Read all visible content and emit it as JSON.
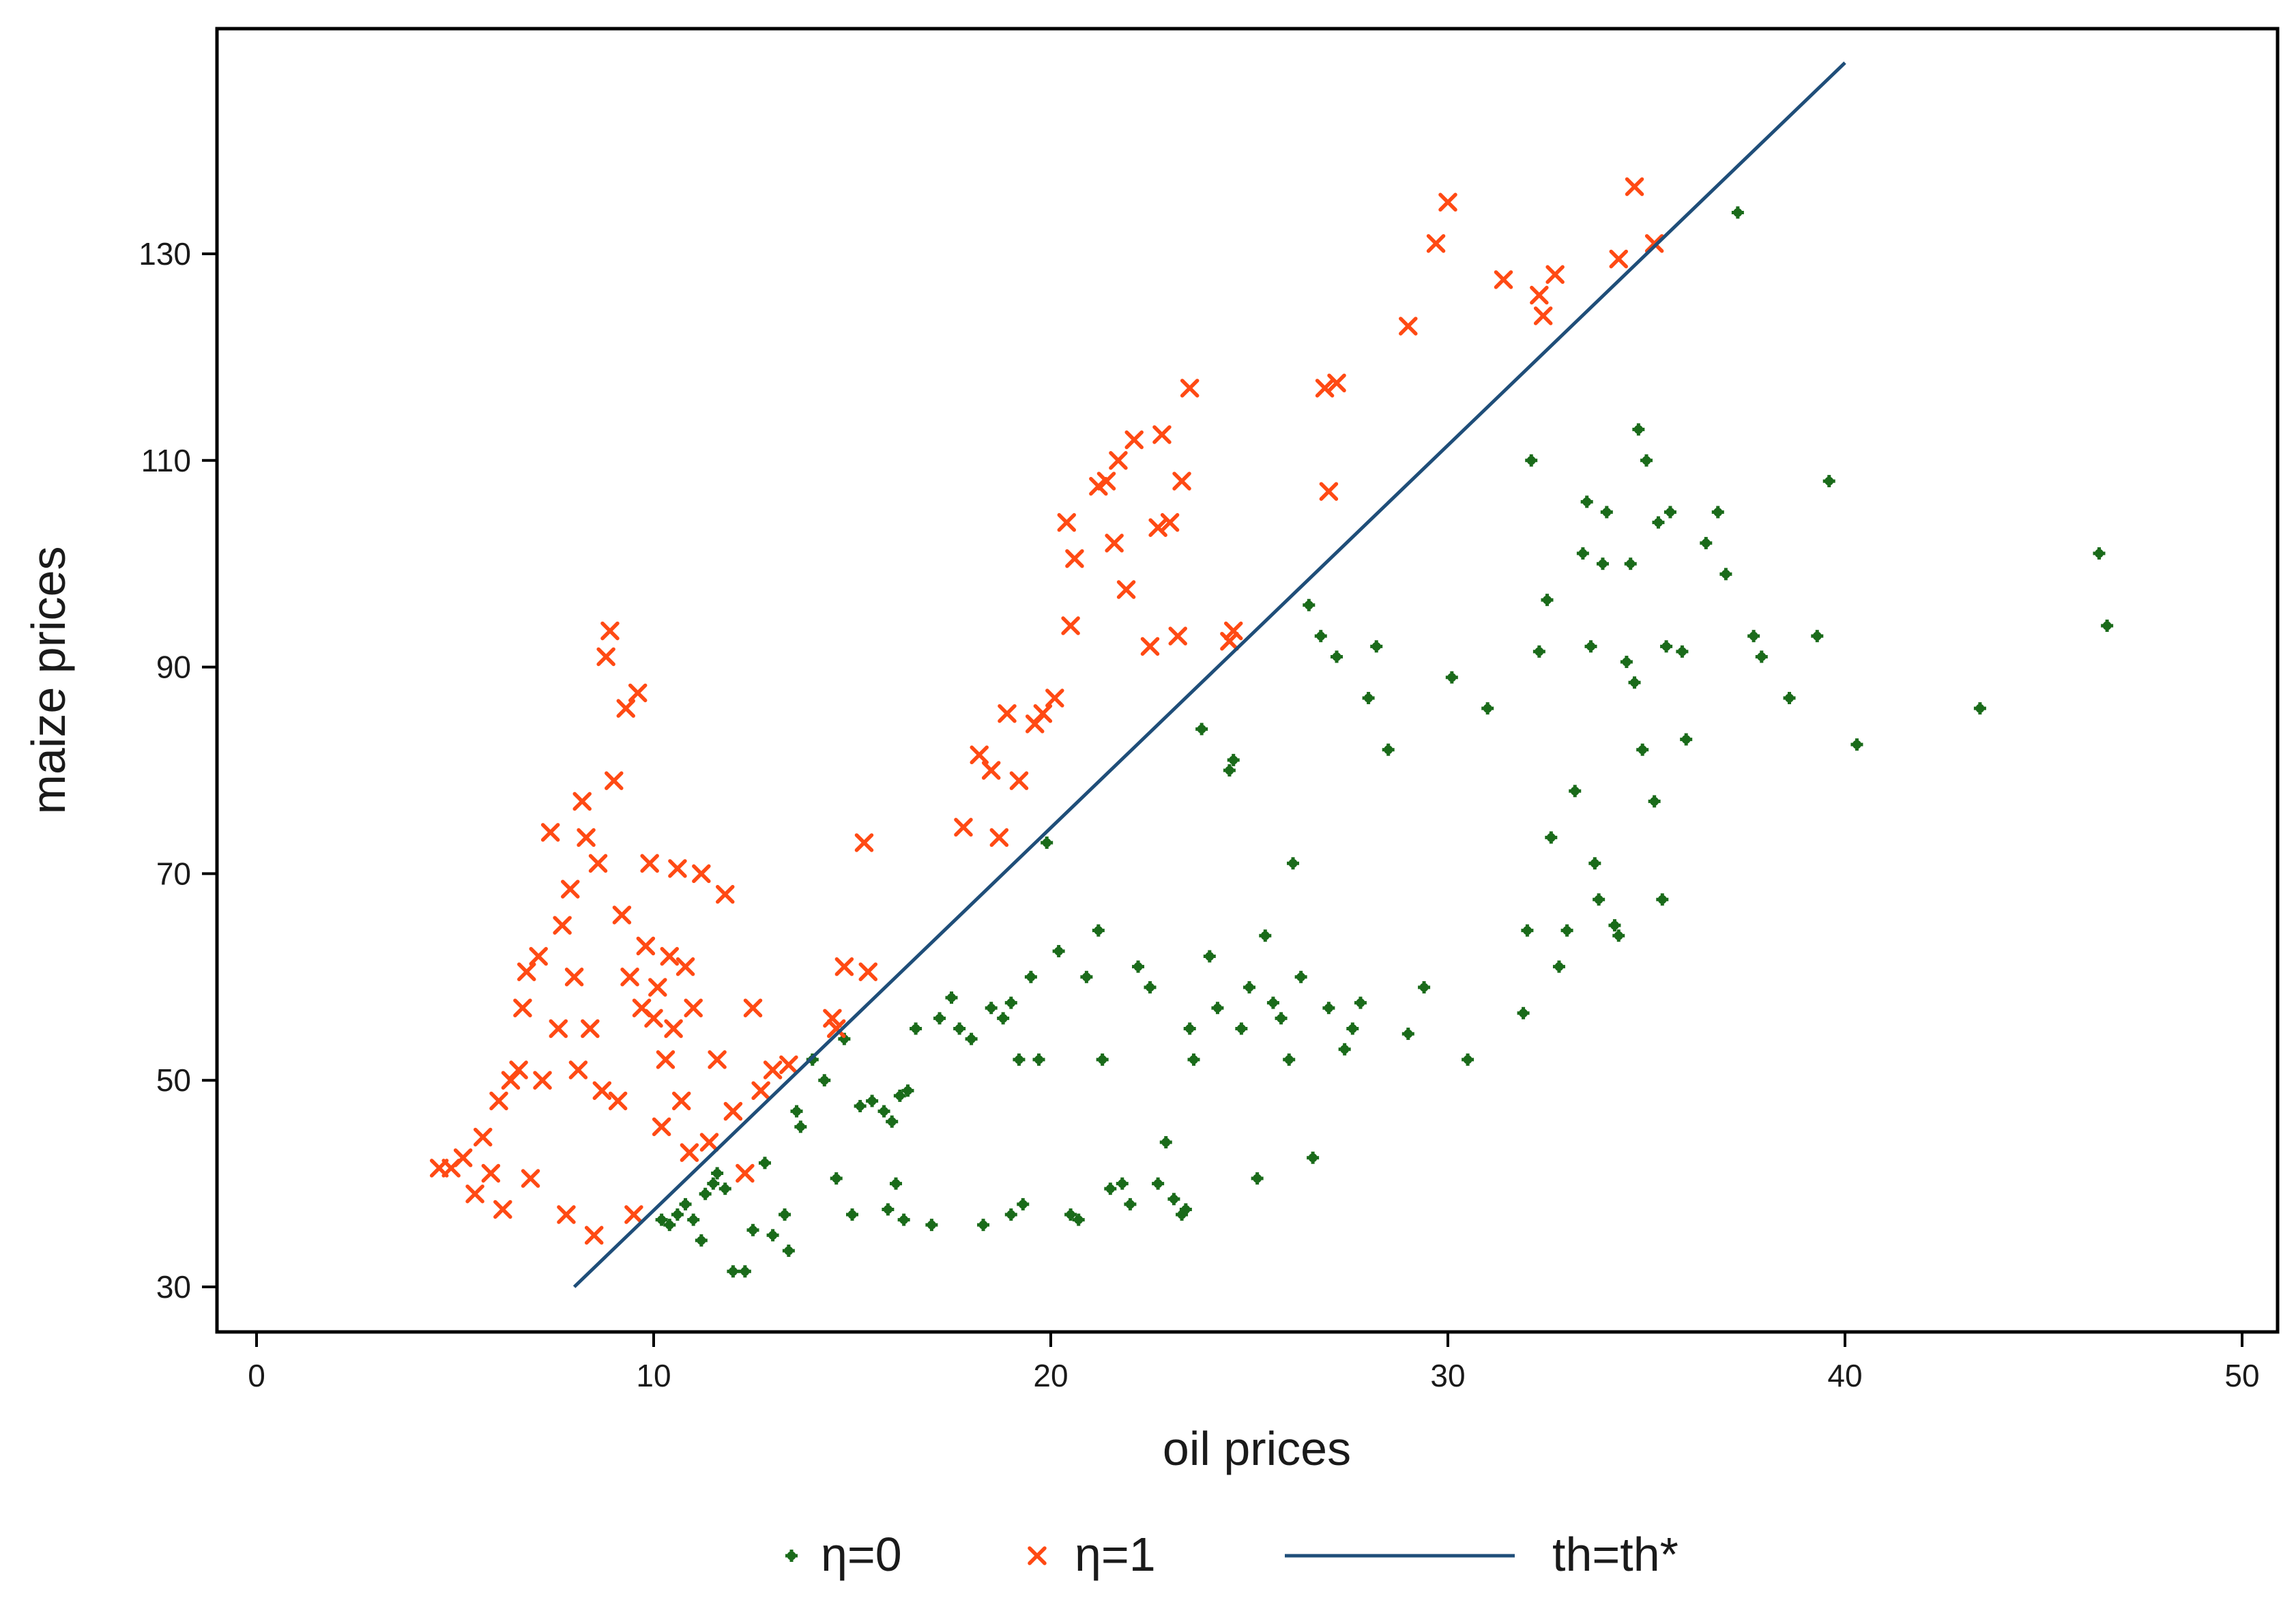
{
  "chart_data": {
    "type": "scatter",
    "title": "",
    "xlabel": "oil prices",
    "ylabel": "maize prices",
    "xlim": [
      -1,
      51
    ],
    "ylim": [
      26,
      149
    ],
    "xticks": [
      0,
      10,
      20,
      30,
      40,
      50
    ],
    "yticks": [
      30,
      50,
      70,
      90,
      110,
      130
    ],
    "grid": false,
    "legend_position": "bottom-center",
    "colors": {
      "eta0": "#1a6b1a",
      "eta1": "#ff4a14",
      "line": "#1f4e79",
      "axis": "#000000"
    },
    "series": [
      {
        "name": "η=0",
        "marker": "dot",
        "points": [
          [
            10.2,
            36.5
          ],
          [
            10.4,
            36
          ],
          [
            10.6,
            37
          ],
          [
            10.8,
            38
          ],
          [
            11.0,
            36.5
          ],
          [
            11.3,
            39
          ],
          [
            11.5,
            40
          ],
          [
            11.6,
            41
          ],
          [
            11.8,
            39.5
          ],
          [
            11.2,
            34.5
          ],
          [
            12.0,
            31.5
          ],
          [
            12.3,
            31.5
          ],
          [
            12.5,
            35.5
          ],
          [
            12.8,
            42
          ],
          [
            13.0,
            35
          ],
          [
            13.3,
            37
          ],
          [
            13.4,
            33.5
          ],
          [
            13.6,
            47
          ],
          [
            13.7,
            45.5
          ],
          [
            14.0,
            52
          ],
          [
            14.3,
            50
          ],
          [
            14.6,
            40.5
          ],
          [
            14.8,
            54
          ],
          [
            15.0,
            37
          ],
          [
            15.2,
            47.5
          ],
          [
            15.5,
            48
          ],
          [
            15.8,
            47
          ],
          [
            16.0,
            46
          ],
          [
            16.2,
            48.5
          ],
          [
            16.4,
            49
          ],
          [
            15.9,
            37.5
          ],
          [
            16.1,
            40
          ],
          [
            16.3,
            36.5
          ],
          [
            16.6,
            55
          ],
          [
            17.0,
            36
          ],
          [
            17.2,
            56
          ],
          [
            17.5,
            58
          ],
          [
            17.7,
            55
          ],
          [
            18.0,
            54
          ],
          [
            18.3,
            36
          ],
          [
            18.5,
            57
          ],
          [
            18.8,
            56
          ],
          [
            19.0,
            57.5
          ],
          [
            19.2,
            52
          ],
          [
            19.0,
            37
          ],
          [
            19.3,
            38
          ],
          [
            19.5,
            60
          ],
          [
            19.7,
            52
          ],
          [
            19.9,
            73
          ],
          [
            20.2,
            62.5
          ],
          [
            20.5,
            37
          ],
          [
            20.7,
            36.5
          ],
          [
            20.9,
            60
          ],
          [
            21.2,
            64.5
          ],
          [
            21.3,
            52
          ],
          [
            21.5,
            39.5
          ],
          [
            21.8,
            40
          ],
          [
            22.0,
            38
          ],
          [
            22.2,
            61
          ],
          [
            22.5,
            59
          ],
          [
            22.7,
            40
          ],
          [
            22.9,
            44
          ],
          [
            23.1,
            38.5
          ],
          [
            23.3,
            37
          ],
          [
            23.4,
            37.5
          ],
          [
            23.5,
            55
          ],
          [
            23.6,
            52
          ],
          [
            23.8,
            84
          ],
          [
            24.0,
            62
          ],
          [
            24.2,
            57
          ],
          [
            24.5,
            80
          ],
          [
            24.6,
            81
          ],
          [
            24.8,
            55
          ],
          [
            25.0,
            59
          ],
          [
            25.2,
            40.5
          ],
          [
            25.4,
            64
          ],
          [
            25.6,
            57.5
          ],
          [
            25.8,
            56
          ],
          [
            26.0,
            52
          ],
          [
            26.1,
            71
          ],
          [
            26.3,
            60
          ],
          [
            26.5,
            96
          ],
          [
            26.6,
            42.5
          ],
          [
            26.8,
            93
          ],
          [
            27.0,
            57
          ],
          [
            27.2,
            91
          ],
          [
            27.4,
            53
          ],
          [
            27.6,
            55
          ],
          [
            27.8,
            57.5
          ],
          [
            28.0,
            87
          ],
          [
            28.2,
            92
          ],
          [
            28.5,
            82
          ],
          [
            29.0,
            54.5
          ],
          [
            29.4,
            59
          ],
          [
            30.1,
            89
          ],
          [
            30.5,
            52
          ],
          [
            31.0,
            86
          ],
          [
            31.9,
            56.5
          ],
          [
            32.0,
            64.5
          ],
          [
            32.1,
            110
          ],
          [
            32.3,
            91.5
          ],
          [
            32.5,
            96.5
          ],
          [
            32.6,
            73.5
          ],
          [
            32.8,
            61
          ],
          [
            33.0,
            64.5
          ],
          [
            33.2,
            78
          ],
          [
            33.4,
            101
          ],
          [
            33.5,
            106
          ],
          [
            33.6,
            92
          ],
          [
            33.7,
            71
          ],
          [
            33.8,
            67.5
          ],
          [
            33.9,
            100
          ],
          [
            34.0,
            105
          ],
          [
            34.2,
            65
          ],
          [
            34.3,
            64
          ],
          [
            34.5,
            90.5
          ],
          [
            34.6,
            100
          ],
          [
            34.7,
            88.5
          ],
          [
            34.8,
            113
          ],
          [
            34.9,
            82
          ],
          [
            35.0,
            110
          ],
          [
            35.2,
            77
          ],
          [
            35.3,
            104
          ],
          [
            35.4,
            67.5
          ],
          [
            35.5,
            92
          ],
          [
            35.6,
            105
          ],
          [
            35.9,
            91.5
          ],
          [
            36.0,
            83
          ],
          [
            36.5,
            102
          ],
          [
            36.8,
            105
          ],
          [
            37.0,
            99
          ],
          [
            37.3,
            134
          ],
          [
            37.7,
            93
          ],
          [
            37.9,
            91
          ],
          [
            38.6,
            87
          ],
          [
            39.3,
            93
          ],
          [
            39.6,
            108
          ],
          [
            40.3,
            82.5
          ],
          [
            43.4,
            86
          ],
          [
            46.4,
            101
          ],
          [
            46.6,
            94
          ]
        ]
      },
      {
        "name": "η=1",
        "marker": "x",
        "points": [
          [
            4.6,
            41.5
          ],
          [
            4.9,
            41.5
          ],
          [
            5.2,
            42.5
          ],
          [
            5.5,
            39
          ],
          [
            5.7,
            44.5
          ],
          [
            5.9,
            41
          ],
          [
            6.1,
            48
          ],
          [
            6.2,
            37.5
          ],
          [
            6.4,
            50
          ],
          [
            6.6,
            51
          ],
          [
            6.7,
            57
          ],
          [
            6.8,
            60.5
          ],
          [
            6.9,
            40.5
          ],
          [
            7.1,
            62
          ],
          [
            7.2,
            50
          ],
          [
            7.4,
            74
          ],
          [
            7.6,
            55
          ],
          [
            7.7,
            65
          ],
          [
            7.8,
            37
          ],
          [
            7.9,
            68.5
          ],
          [
            8.0,
            60
          ],
          [
            8.1,
            51
          ],
          [
            8.2,
            77
          ],
          [
            8.3,
            73.5
          ],
          [
            8.4,
            55
          ],
          [
            8.5,
            35
          ],
          [
            8.6,
            71
          ],
          [
            8.7,
            49
          ],
          [
            8.8,
            91
          ],
          [
            8.9,
            93.5
          ],
          [
            9.0,
            79
          ],
          [
            9.1,
            48
          ],
          [
            9.2,
            66
          ],
          [
            9.3,
            86
          ],
          [
            9.4,
            60
          ],
          [
            9.5,
            37
          ],
          [
            9.6,
            87.5
          ],
          [
            9.7,
            57
          ],
          [
            9.8,
            63
          ],
          [
            9.9,
            71
          ],
          [
            10.0,
            56
          ],
          [
            10.1,
            59
          ],
          [
            10.2,
            45.5
          ],
          [
            10.3,
            52
          ],
          [
            10.4,
            62
          ],
          [
            10.5,
            55
          ],
          [
            10.6,
            70.5
          ],
          [
            10.7,
            48
          ],
          [
            10.8,
            61
          ],
          [
            10.9,
            43
          ],
          [
            11.0,
            57
          ],
          [
            11.2,
            70
          ],
          [
            11.4,
            44
          ],
          [
            11.6,
            52
          ],
          [
            11.8,
            68
          ],
          [
            12.0,
            47
          ],
          [
            12.3,
            41
          ],
          [
            12.5,
            57
          ],
          [
            12.7,
            49
          ],
          [
            13.0,
            51
          ],
          [
            13.4,
            51.5
          ],
          [
            14.5,
            56
          ],
          [
            14.6,
            55
          ],
          [
            14.8,
            61
          ],
          [
            15.3,
            73
          ],
          [
            15.4,
            60.5
          ],
          [
            17.8,
            74.5
          ],
          [
            18.2,
            81.5
          ],
          [
            18.5,
            80
          ],
          [
            18.7,
            73.5
          ],
          [
            18.9,
            85.5
          ],
          [
            19.2,
            79
          ],
          [
            19.6,
            84.5
          ],
          [
            19.8,
            85.5
          ],
          [
            20.1,
            87
          ],
          [
            20.4,
            104
          ],
          [
            20.5,
            94
          ],
          [
            20.6,
            100.5
          ],
          [
            21.2,
            107.5
          ],
          [
            21.4,
            108
          ],
          [
            21.6,
            102
          ],
          [
            21.7,
            110
          ],
          [
            21.9,
            97.5
          ],
          [
            22.1,
            112
          ],
          [
            22.5,
            92
          ],
          [
            22.7,
            103.5
          ],
          [
            22.8,
            112.5
          ],
          [
            23.0,
            104
          ],
          [
            23.2,
            93
          ],
          [
            23.3,
            108
          ],
          [
            23.5,
            117
          ],
          [
            24.5,
            92.5
          ],
          [
            24.6,
            93.5
          ],
          [
            26.9,
            117
          ],
          [
            27.0,
            107
          ],
          [
            27.2,
            117.5
          ],
          [
            29.0,
            123
          ],
          [
            29.7,
            131
          ],
          [
            30.0,
            135
          ],
          [
            31.4,
            127.5
          ],
          [
            32.3,
            126
          ],
          [
            32.4,
            124
          ],
          [
            32.7,
            128
          ],
          [
            34.3,
            129.5
          ],
          [
            34.7,
            136.5
          ],
          [
            35.2,
            131
          ]
        ]
      },
      {
        "name": "th=th*",
        "marker": "line",
        "points": [
          [
            8.0,
            30
          ],
          [
            40.0,
            148.5
          ]
        ]
      }
    ]
  }
}
